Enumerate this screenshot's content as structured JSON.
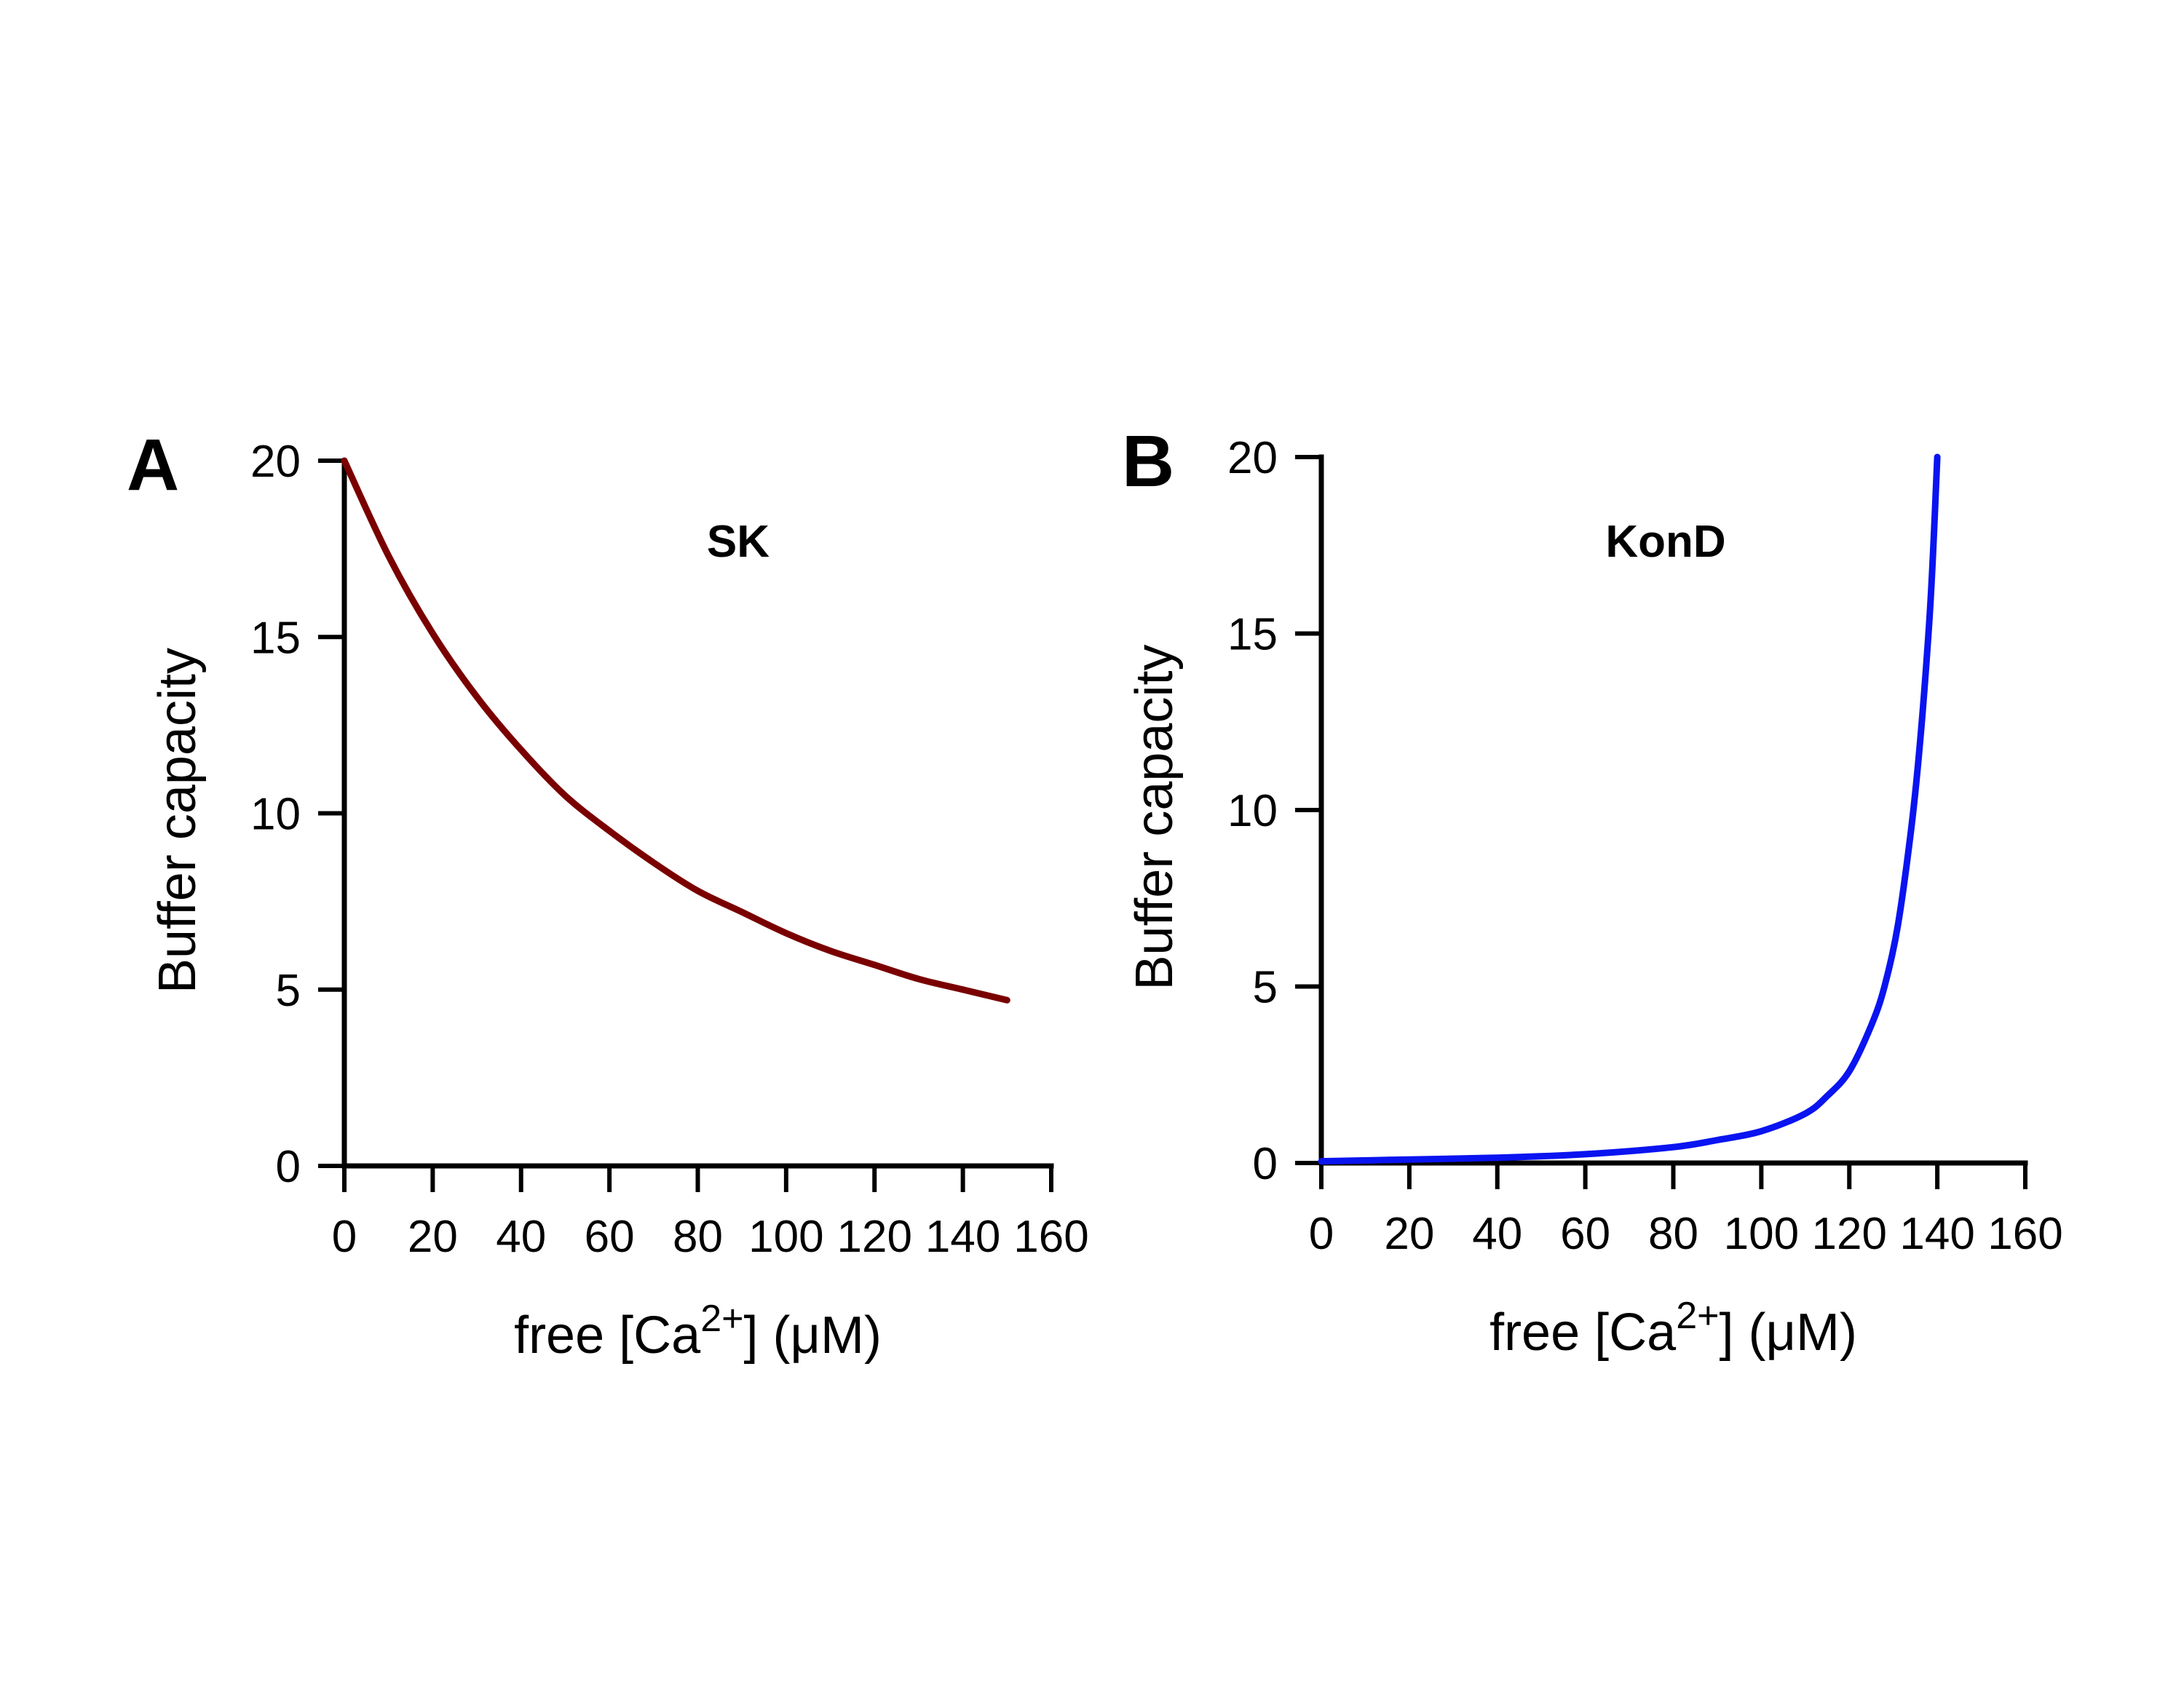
{
  "chart_data": [
    {
      "type": "line",
      "panel_label": "A",
      "series_label": "SK",
      "xlabel": {
        "prefix": "free [Ca",
        "superscript": "2+",
        "suffix": "] (μM)"
      },
      "ylabel": "Buffer capacity",
      "xlim": [
        0,
        160
      ],
      "ylim": [
        0,
        20
      ],
      "xticks": [
        0,
        20,
        40,
        60,
        80,
        100,
        120,
        140,
        160
      ],
      "yticks": [
        0,
        5,
        10,
        15,
        20
      ],
      "grid": false,
      "color": "#7a0000",
      "series": [
        {
          "x": [
            0,
            10,
            20,
            30,
            40,
            50,
            60,
            70,
            80,
            90,
            100,
            110,
            120,
            130,
            140,
            150
          ],
          "y": [
            20.0,
            17.3,
            15.1,
            13.3,
            11.8,
            10.5,
            9.5,
            8.6,
            7.8,
            7.2,
            6.6,
            6.1,
            5.7,
            5.3,
            5.0,
            4.7
          ]
        }
      ]
    },
    {
      "type": "line",
      "panel_label": "B",
      "series_label": "KonD",
      "xlabel": {
        "prefix": "free [Ca",
        "superscript": "2+",
        "suffix": "] (μM)"
      },
      "ylabel": "Buffer capacity",
      "xlim": [
        0,
        160
      ],
      "ylim": [
        0,
        20
      ],
      "xticks": [
        0,
        20,
        40,
        60,
        80,
        100,
        120,
        140,
        160
      ],
      "yticks": [
        0,
        5,
        10,
        15,
        20
      ],
      "grid": false,
      "color": "#0a14f0",
      "series": [
        {
          "x": [
            0,
            20,
            40,
            60,
            80,
            90,
            100,
            110,
            115,
            120,
            125,
            128,
            131,
            134,
            136,
            138,
            139,
            140
          ],
          "y": [
            0.05,
            0.1,
            0.15,
            0.25,
            0.45,
            0.65,
            0.9,
            1.4,
            1.9,
            2.6,
            3.9,
            5.0,
            6.7,
            9.4,
            11.8,
            15.0,
            17.2,
            20.0
          ]
        }
      ]
    }
  ]
}
